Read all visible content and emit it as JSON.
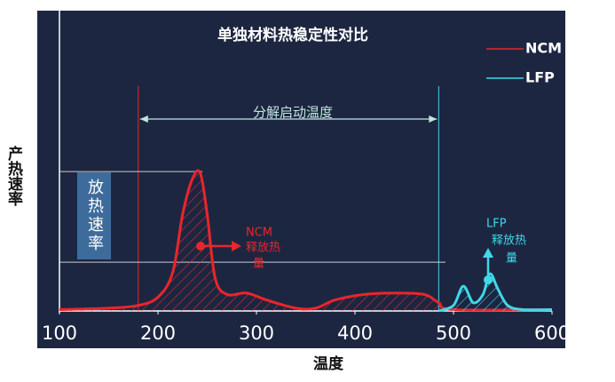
{
  "chart_data": {
    "type": "line",
    "title": "单独材料热稳定性对比",
    "x_label": "温度",
    "y_label": "产热速率",
    "xlim": [
      100,
      600
    ],
    "xticks": [
      100,
      200,
      300,
      400,
      500,
      600
    ],
    "ylim": [
      0,
      100
    ],
    "series": [
      {
        "name": "NCM",
        "color": "#e8262b",
        "x": [
          100,
          150,
          180,
          200,
          215,
          225,
          235,
          243,
          250,
          258,
          270,
          290,
          310,
          340,
          360,
          380,
          410,
          440,
          470,
          485,
          500,
          600
        ],
        "values": [
          0.5,
          1,
          2,
          5,
          14,
          35,
          48,
          50,
          35,
          12,
          6,
          6.5,
          4,
          1,
          1,
          4,
          6,
          6.5,
          6,
          3,
          0.5,
          0.5
        ]
      },
      {
        "name": "LFP",
        "color": "#3fd8e8",
        "x": [
          485,
          500,
          510,
          520,
          530,
          537,
          545,
          555,
          570,
          600
        ],
        "values": [
          0,
          2,
          9,
          3,
          6,
          13.5,
          8,
          2,
          0.5,
          0.5
        ]
      }
    ],
    "vlines": [
      180,
      485
    ],
    "hlines": [
      50.6,
      17.7
    ],
    "annotations": {
      "onset": "分解启动温度",
      "rate": "放热速率",
      "ncm_heat": [
        "NCM",
        "释放热",
        "量"
      ],
      "lfp_heat": [
        "LFP",
        "释放热",
        "量"
      ]
    }
  }
}
